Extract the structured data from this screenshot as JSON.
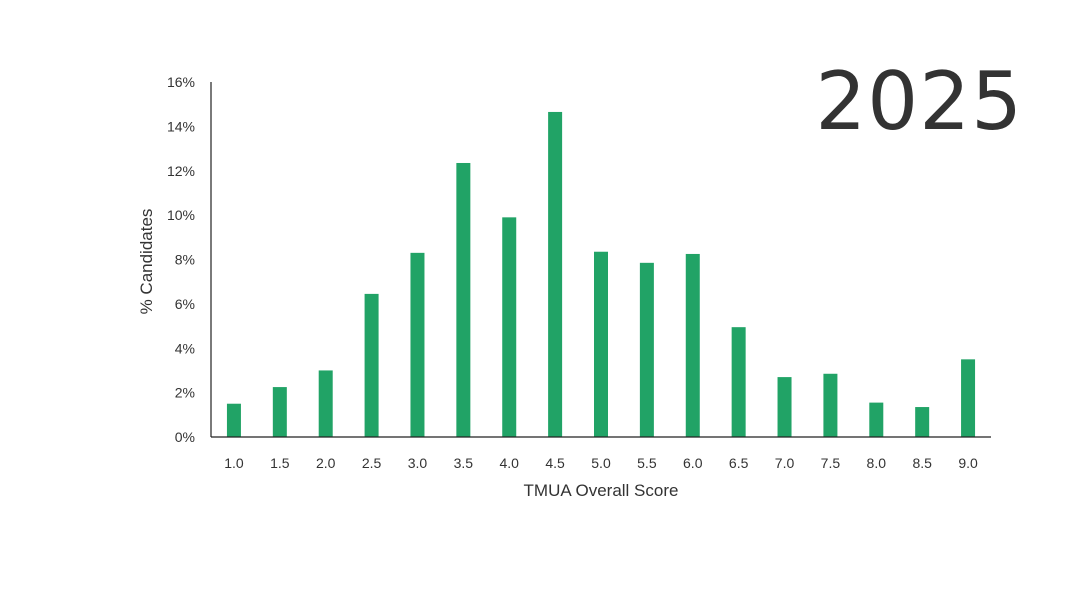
{
  "overlay": {
    "year": "2025"
  },
  "chart_data": {
    "type": "bar",
    "categories": [
      "1.0",
      "1.5",
      "2.0",
      "2.5",
      "3.0",
      "3.5",
      "4.0",
      "4.5",
      "5.0",
      "5.5",
      "6.0",
      "6.5",
      "7.0",
      "7.5",
      "8.0",
      "8.5",
      "9.0"
    ],
    "series": [
      {
        "values": [
          1.5,
          2.25,
          3.0,
          6.45,
          8.3,
          12.35,
          9.9,
          14.65,
          8.35,
          7.85,
          8.25,
          4.95,
          2.7,
          2.85,
          1.55,
          1.35,
          3.5
        ]
      }
    ],
    "ylim": [
      0,
      16
    ],
    "yticks": [
      "0%",
      "2%",
      "4%",
      "6%",
      "8%",
      "10%",
      "12%",
      "14%",
      "16%"
    ],
    "xlabel": "TMUA Overall Score",
    "ylabel": "% Candidates",
    "bar_color": "#21a366",
    "axis_color": "#222222",
    "grid": false,
    "legend": "none"
  }
}
